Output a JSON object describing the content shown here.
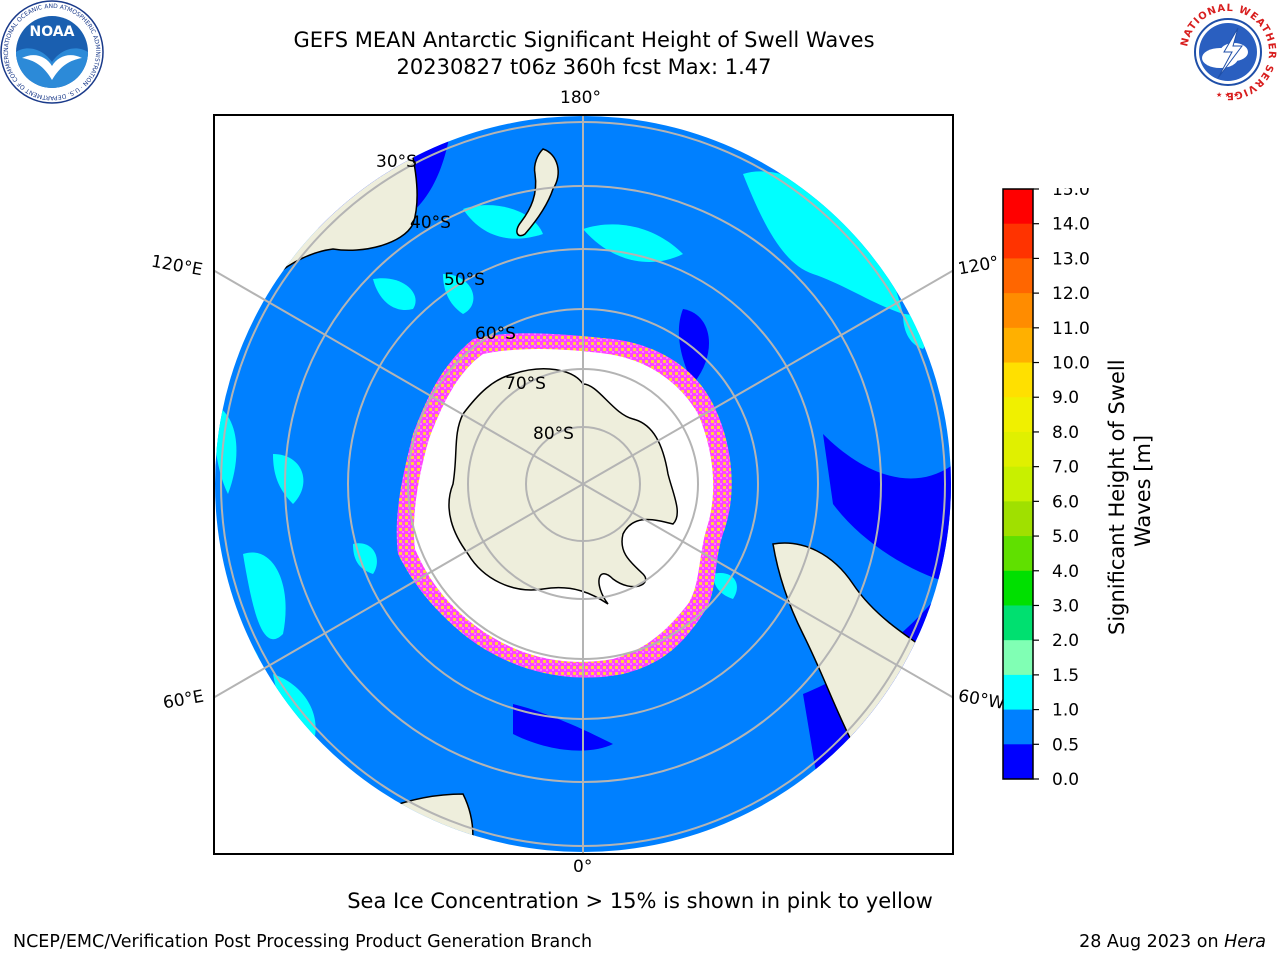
{
  "header": {
    "title": "GEFS MEAN Antarctic Significant Height of Swell Waves",
    "subtitle": "20230827 t06z 360h fcst   Max: 1.47"
  },
  "logos": {
    "noaa": {
      "name": "NOAA",
      "ring_text": "NATIONAL OCEANIC AND ATMOSPHERIC ADMINISTRATION · U.S. DEPARTMENT OF COMMERCE"
    },
    "nws": {
      "ring_text": "NATIONAL WEATHER SERVICE"
    }
  },
  "map": {
    "projection": "south polar stereographic",
    "lon_labels": {
      "top": "180°",
      "bottom": "0°",
      "left_upper": "120°E",
      "left_lower": "60°E",
      "right_upper": "120°",
      "right_lower": "60°W"
    },
    "lat_labels": [
      "30°S",
      "40°S",
      "50°S",
      "60°S",
      "70°S",
      "80°S"
    ],
    "colors": {
      "ocean_base": "#0080ff",
      "ocean_low": "#0000ff",
      "swell_1_15": "#00ffff",
      "land": "#eeeedc",
      "sea_ice_open": "#ffffff",
      "ice_edge_pink": "#ff33ff",
      "ice_edge_yellow": "#ffd040",
      "grid": "#b4b4b4"
    }
  },
  "colorbar": {
    "label": "Significant Height of Swell Waves [m]",
    "label_line1": "Significant Height of Swell",
    "label_line2": "Waves [m]",
    "ticks": [
      "15.0",
      "14.0",
      "13.0",
      "12.0",
      "11.0",
      "10.0",
      "9.0",
      "8.0",
      "7.0",
      "6.0",
      "5.0",
      "4.0",
      "3.0",
      "2.0",
      "1.5",
      "1.0",
      "0.5",
      "0.0"
    ],
    "colors_top_to_bottom": [
      "#ff0000",
      "#ff3300",
      "#ff6600",
      "#ff8c00",
      "#ffb000",
      "#ffe000",
      "#f0f000",
      "#e0f000",
      "#c8f000",
      "#a0e000",
      "#60e000",
      "#00e000",
      "#00e070",
      "#80ffb4",
      "#a0ffff",
      "#50ffff",
      "#00ffff",
      "#0080ff",
      "#0000ff"
    ]
  },
  "footer": {
    "note": "Sea Ice Concentration > 15% is shown in pink to yellow",
    "left": "NCEP/EMC/Verification Post Processing Product Generation Branch",
    "right_date": "28 Aug 2023 on",
    "right_host": "Hera"
  }
}
